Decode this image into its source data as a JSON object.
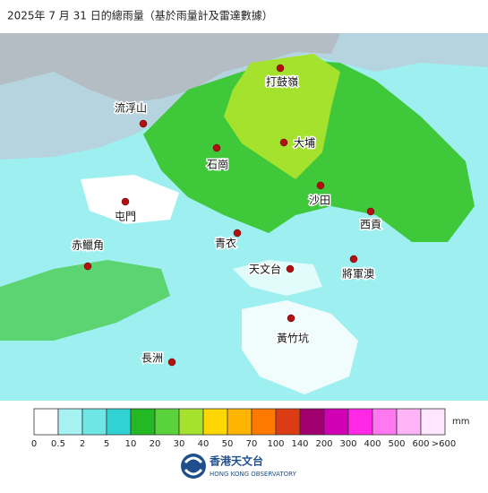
{
  "header": {
    "title": "2025年  7  月 31  日的總雨量（基於雨量計及雷達數據）"
  },
  "map": {
    "stations": [
      "打鼓嶺",
      "流浮山",
      "大埔",
      "石崗",
      "沙田",
      "屯門",
      "西貢",
      "青衣",
      "赤鱲角",
      "天文台",
      "將軍澳",
      "黃竹坑",
      "長洲"
    ]
  },
  "legend": {
    "colors": [
      "#ffffff",
      "#a6f2f2",
      "#6ee6e6",
      "#30d2d2",
      "#22b922",
      "#5ad23c",
      "#a5e22d",
      "#ffd700",
      "#ffb400",
      "#ff7800",
      "#dc3c14",
      "#a0006e",
      "#d200b4",
      "#ff28e6",
      "#ff78f0",
      "#ffb4f8",
      "#ffe6ff"
    ],
    "labels": [
      "0",
      "0.5",
      "2",
      "5",
      "10",
      "20",
      "30",
      "40",
      "50",
      "70",
      "100",
      "140",
      "200",
      "300",
      "400",
      "500",
      "600",
      ">600"
    ],
    "unit": "mm"
  },
  "logo": {
    "chinese": "香港天文台",
    "english": "HONG KONG OBSERVATORY"
  }
}
